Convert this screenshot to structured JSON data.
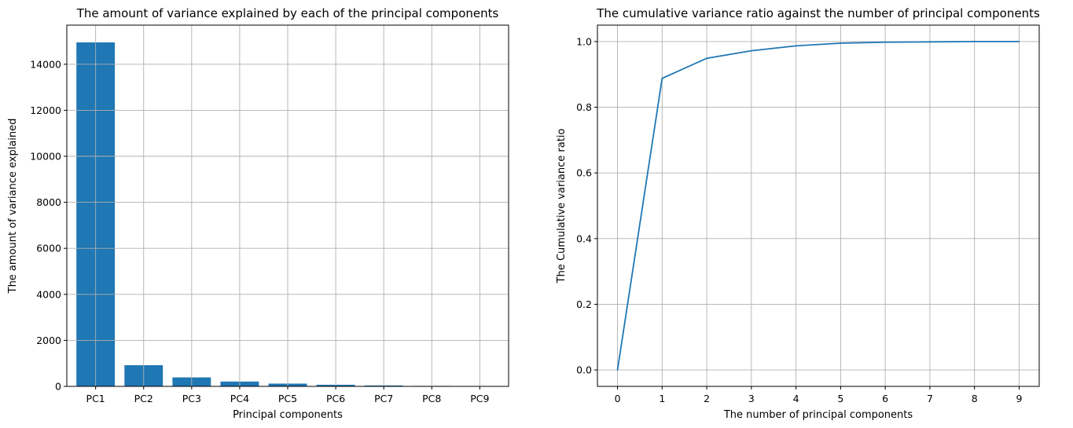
{
  "chart_data": [
    {
      "type": "bar",
      "title": "The amount of variance explained by each of the principal components",
      "xlabel": "Principal components",
      "ylabel": "The amount of variance explained",
      "categories": [
        "PC1",
        "PC2",
        "PC3",
        "PC4",
        "PC5",
        "PC6",
        "PC7",
        "PC8",
        "PC9"
      ],
      "values": [
        14950,
        920,
        390,
        210,
        120,
        70,
        40,
        20,
        8
      ],
      "ylim": [
        0,
        15700
      ],
      "yticks": [
        0,
        2000,
        4000,
        6000,
        8000,
        10000,
        12000,
        14000
      ],
      "ytick_labels": [
        "0",
        "2000",
        "4000",
        "6000",
        "8000",
        "10000",
        "12000",
        "14000"
      ],
      "grid": true,
      "bar_color": "#1f77b4"
    },
    {
      "type": "line",
      "title": "The cumulative variance ratio against the number of principal components",
      "xlabel": "The number of principal components",
      "ylabel": "The Cumulative variance ratio",
      "x": [
        0,
        1,
        2,
        3,
        4,
        5,
        6,
        7,
        8,
        9
      ],
      "y": [
        0.0,
        0.888,
        0.949,
        0.972,
        0.987,
        0.995,
        0.998,
        0.999,
        1.0,
        1.0
      ],
      "xlim": [
        -0.45,
        9.45
      ],
      "ylim": [
        -0.05,
        1.05
      ],
      "xticks": [
        0,
        1,
        2,
        3,
        4,
        5,
        6,
        7,
        8,
        9
      ],
      "xtick_labels": [
        "0",
        "1",
        "2",
        "3",
        "4",
        "5",
        "6",
        "7",
        "8",
        "9"
      ],
      "yticks": [
        0.0,
        0.2,
        0.4,
        0.6,
        0.8,
        1.0
      ],
      "ytick_labels": [
        "0.0",
        "0.2",
        "0.4",
        "0.6",
        "0.8",
        "1.0"
      ],
      "grid": true,
      "line_color": "#1f77b4"
    }
  ]
}
